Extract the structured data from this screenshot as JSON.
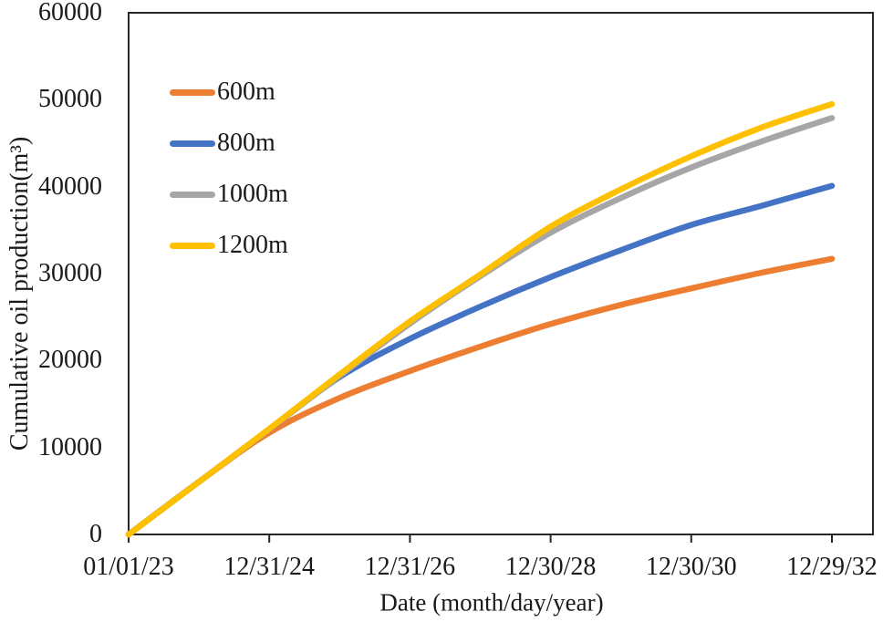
{
  "chart_data": {
    "type": "line",
    "title": "",
    "xlabel": "Date (month/day/year)",
    "ylabel": "Cumulative oil production(m³)",
    "x_years_from_start": [
      0,
      1,
      2,
      3,
      4,
      5,
      6,
      7,
      8,
      9,
      10
    ],
    "x_tick_positions_years": [
      0,
      2,
      4,
      6,
      8,
      10
    ],
    "x_tick_labels": [
      "01/01/23",
      "12/31/24",
      "12/31/26",
      "12/30/28",
      "12/30/30",
      "12/29/32"
    ],
    "y_ticks": [
      "0",
      "10000",
      "20000",
      "30000",
      "40000",
      "50000",
      "60000"
    ],
    "y_tick_values": [
      0,
      10000,
      20000,
      30000,
      40000,
      50000,
      60000
    ],
    "ylim": [
      0,
      60000
    ],
    "xlim_years": [
      0,
      10.58
    ],
    "grid": false,
    "legend_position": "inside-top-left",
    "series": [
      {
        "name": "600m",
        "color": "#ED7D31",
        "values": [
          0,
          6050,
          11700,
          15700,
          18800,
          21600,
          24200,
          26400,
          28300,
          30100,
          31700
        ]
      },
      {
        "name": "800m",
        "color": "#4472C4",
        "values": [
          0,
          6050,
          12100,
          18100,
          22500,
          26200,
          29600,
          32700,
          35600,
          37800,
          40100
        ]
      },
      {
        "name": "1000m",
        "color": "#A6A6A6",
        "values": [
          0,
          6050,
          12100,
          18250,
          24250,
          29700,
          34700,
          38700,
          42200,
          45200,
          47900
        ]
      },
      {
        "name": "1200m",
        "color": "#FFC000",
        "values": [
          0,
          6050,
          12150,
          18400,
          24500,
          29900,
          35400,
          39700,
          43500,
          46800,
          49500
        ]
      }
    ],
    "axis_color": "#262626",
    "text_color": "#1a1a1a"
  }
}
